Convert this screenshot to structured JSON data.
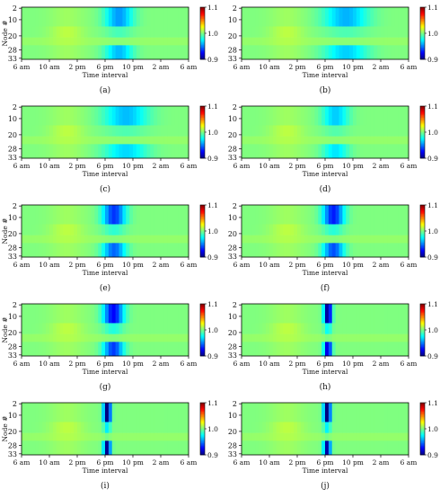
{
  "chart_data": [
    {
      "type": "heatmap",
      "caption": "(a)",
      "x": [
        "6 am",
        "10 am",
        "2 pm",
        "6 pm",
        "10 pm",
        "2 am",
        "6 am"
      ],
      "y": [
        "2",
        "10",
        "20",
        "28",
        "33"
      ],
      "xlabel": "Time interval",
      "ylabel": "Node #",
      "colorbar": {
        "ticks": [
          "1.1",
          "1.0",
          "0.9"
        ],
        "range": [
          0.9,
          1.1
        ],
        "colormap": "jet"
      },
      "feature": {
        "center_hour": 20,
        "width_hours": 3.2,
        "min_value": 0.955
      }
    },
    {
      "type": "heatmap",
      "caption": "(b)",
      "x": [
        "6 am",
        "10 am",
        "2 pm",
        "6 pm",
        "10 pm",
        "2 am",
        "6 am"
      ],
      "y": [
        "2",
        "10",
        "20",
        "28",
        "33"
      ],
      "xlabel": "Time interval",
      "ylabel": "",
      "colorbar": {
        "ticks": [
          "1.1",
          "1.0",
          "0.9"
        ],
        "range": [
          0.9,
          1.1
        ],
        "colormap": "jet"
      },
      "feature": {
        "center_hour": 21,
        "width_hours": 5,
        "min_value": 0.96
      }
    },
    {
      "type": "heatmap",
      "caption": "(c)",
      "x": [
        "6 am",
        "10 am",
        "2 pm",
        "6 pm",
        "10 pm",
        "2 am",
        "6 am"
      ],
      "y": [
        "2",
        "10",
        "20",
        "28",
        "33"
      ],
      "xlabel": "Time interval",
      "ylabel": "",
      "colorbar": {
        "ticks": [
          "1.1",
          "1.0",
          "0.9"
        ],
        "range": [
          0.9,
          1.1
        ],
        "colormap": "jet"
      },
      "feature": {
        "center_hour": 21,
        "width_hours": 5,
        "min_value": 0.962
      }
    },
    {
      "type": "heatmap",
      "caption": "(d)",
      "x": [
        "6 am",
        "10 am",
        "2 pm",
        "6 pm",
        "10 pm",
        "2 am",
        "6 am"
      ],
      "y": [
        "2",
        "10",
        "20",
        "28",
        "33"
      ],
      "xlabel": "Time interval",
      "ylabel": "",
      "colorbar": {
        "ticks": [
          "1.1",
          "1.0",
          "0.9"
        ],
        "range": [
          0.9,
          1.1
        ],
        "colormap": "jet"
      },
      "feature": {
        "center_hour": 19.5,
        "width_hours": 3,
        "min_value": 0.965
      }
    },
    {
      "type": "heatmap",
      "caption": "(e)",
      "x": [
        "6 am",
        "10 am",
        "2 pm",
        "6 pm",
        "10 pm",
        "2 am",
        "6 am"
      ],
      "y": [
        "2",
        "10",
        "20",
        "28",
        "33"
      ],
      "xlabel": "Time interval",
      "ylabel": "Node #",
      "colorbar": {
        "ticks": [
          "1.1",
          "1.0",
          "0.9"
        ],
        "range": [
          0.9,
          1.1
        ],
        "colormap": "jet"
      },
      "feature": {
        "center_hour": 19.3,
        "width_hours": 2.6,
        "min_value": 0.935
      }
    },
    {
      "type": "heatmap",
      "caption": "(f)",
      "x": [
        "6 am",
        "10 am",
        "2 pm",
        "6 pm",
        "10 pm",
        "2 am",
        "6 am"
      ],
      "y": [
        "2",
        "10",
        "20",
        "28",
        "33"
      ],
      "xlabel": "Time interval",
      "ylabel": "",
      "colorbar": {
        "ticks": [
          "1.1",
          "1.0",
          "0.9"
        ],
        "range": [
          0.9,
          1.1
        ],
        "colormap": "jet"
      },
      "feature": {
        "center_hour": 19.2,
        "width_hours": 2.4,
        "min_value": 0.93
      }
    },
    {
      "type": "heatmap",
      "caption": "(g)",
      "x": [
        "6 am",
        "10 am",
        "2 pm",
        "6 pm",
        "10 pm",
        "2 am",
        "6 am"
      ],
      "y": [
        "2",
        "10",
        "20",
        "28",
        "33"
      ],
      "xlabel": "Time interval",
      "ylabel": "Node #",
      "colorbar": {
        "ticks": [
          "1.1",
          "1.0",
          "0.9"
        ],
        "range": [
          0.9,
          1.1
        ],
        "colormap": "jet"
      },
      "feature": {
        "center_hour": 19.2,
        "width_hours": 2.3,
        "min_value": 0.925
      }
    },
    {
      "type": "heatmap",
      "caption": "(h)",
      "x": [
        "6 am",
        "10 am",
        "2 pm",
        "6 pm",
        "10 pm",
        "2 am",
        "6 am"
      ],
      "y": [
        "2",
        "10",
        "20",
        "28",
        "33"
      ],
      "xlabel": "Time interval",
      "ylabel": "",
      "colorbar": {
        "ticks": [
          "1.1",
          "1.0",
          "0.9"
        ],
        "range": [
          0.9,
          1.1
        ],
        "colormap": "jet"
      },
      "feature": {
        "center_hour": 18.4,
        "width_hours": 0.9,
        "min_value": 0.9
      }
    },
    {
      "type": "heatmap",
      "caption": "(i)",
      "x": [
        "6 am",
        "10 am",
        "2 pm",
        "6 pm",
        "10 pm",
        "2 am",
        "6 am"
      ],
      "y": [
        "2",
        "10",
        "20",
        "28",
        "33"
      ],
      "xlabel": "Time interval",
      "ylabel": "Node #",
      "colorbar": {
        "ticks": [
          "1.1",
          "1.0",
          "0.9"
        ],
        "range": [
          0.9,
          1.1
        ],
        "colormap": "jet"
      },
      "feature": {
        "center_hour": 18.3,
        "width_hours": 0.8,
        "min_value": 0.885
      }
    },
    {
      "type": "heatmap",
      "caption": "(j)",
      "x": [
        "6 am",
        "10 am",
        "2 pm",
        "6 pm",
        "10 pm",
        "2 am",
        "6 am"
      ],
      "y": [
        "2",
        "10",
        "20",
        "28",
        "33"
      ],
      "xlabel": "Time interval",
      "ylabel": "",
      "colorbar": {
        "ticks": [
          "1.1",
          "1.0",
          "0.9"
        ],
        "range": [
          0.9,
          1.1
        ],
        "colormap": "jet"
      },
      "feature": {
        "center_hour": 18.3,
        "width_hours": 0.8,
        "min_value": 0.89
      }
    }
  ]
}
